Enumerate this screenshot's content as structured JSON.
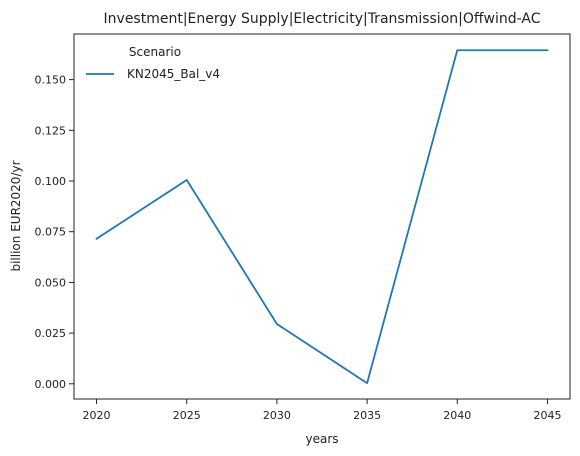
{
  "chart_data": {
    "type": "line",
    "title": "Investment|Energy Supply|Electricity|Transmission|Offwind-AC",
    "xlabel": "years",
    "ylabel": "billion EUR2020/yr",
    "x": [
      2020,
      2025,
      2030,
      2035,
      2040,
      2045
    ],
    "series": [
      {
        "name": "KN2045_Bal_v4",
        "color": "#1f77b4",
        "values": [
          0.0715,
          0.1005,
          0.0295,
          0.0003,
          0.1645,
          0.1645
        ]
      }
    ],
    "xlim": [
      2018.75,
      2046.25
    ],
    "ylim": [
      -0.0075,
      0.1725
    ],
    "xticks": [
      "2020",
      "2025",
      "2030",
      "2035",
      "2040",
      "2045"
    ],
    "yticks": [
      "0.000",
      "0.025",
      "0.050",
      "0.075",
      "0.100",
      "0.125",
      "0.150"
    ],
    "legend": {
      "title": "Scenario",
      "placement": "top-left"
    },
    "grid": false
  }
}
